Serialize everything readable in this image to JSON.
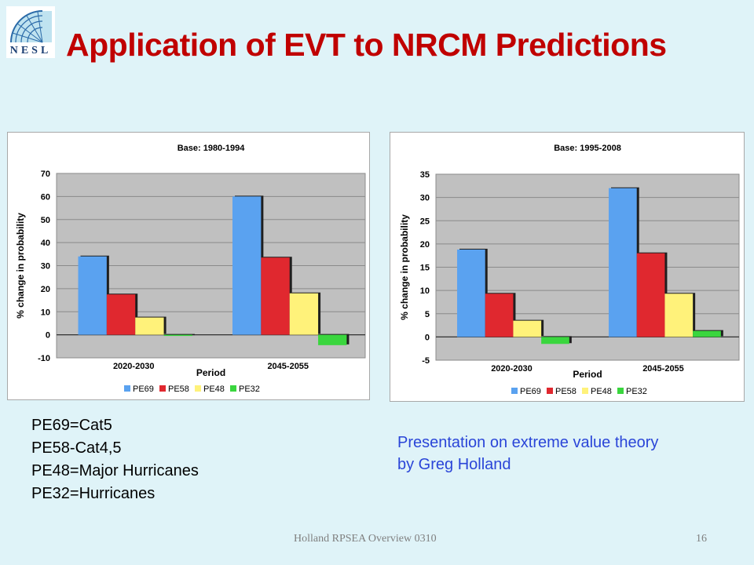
{
  "slide": {
    "title": "Application of EVT to NRCM Predictions",
    "logo_text": "NESL",
    "definitions": [
      "PE69=Cat5",
      "PE58-Cat4,5",
      "PE48=Major Hurricanes",
      "PE32=Hurricanes"
    ],
    "note_lines": [
      "Presentation on extreme value theory",
      "by Greg Holland"
    ],
    "footer": "Holland RPSEA Overview 0310",
    "page_number": "16"
  },
  "colors": {
    "PE69": "#5aa2f0",
    "PE58": "#e0282f",
    "PE48": "#fff27a",
    "PE32": "#3ad63e",
    "title": "#c00000",
    "plot_bg": "#c0c0c0"
  },
  "chart_data": [
    {
      "type": "bar",
      "title": "Base: 1980-1994",
      "xlabel": "Period",
      "ylabel": "% change in probability",
      "ylim": [
        -10,
        70
      ],
      "yticks": [
        -10,
        0,
        10,
        20,
        30,
        40,
        50,
        60,
        70
      ],
      "categories": [
        "2020-2030",
        "2045-2055"
      ],
      "series": [
        {
          "name": "PE69",
          "values": [
            34,
            60
          ]
        },
        {
          "name": "PE58",
          "values": [
            17.5,
            33.5
          ]
        },
        {
          "name": "PE48",
          "values": [
            7.5,
            18
          ]
        },
        {
          "name": "PE32",
          "values": [
            -0.5,
            -4.5
          ]
        }
      ],
      "grid": true,
      "legend": "bottom"
    },
    {
      "type": "bar",
      "title": "Base: 1995-2008",
      "xlabel": "Period",
      "ylabel": "% change in probability",
      "ylim": [
        -5,
        35
      ],
      "yticks": [
        -5,
        0,
        5,
        10,
        15,
        20,
        25,
        30,
        35
      ],
      "categories": [
        "2020-2030",
        "2045-2055"
      ],
      "series": [
        {
          "name": "PE69",
          "values": [
            18.8,
            32
          ]
        },
        {
          "name": "PE58",
          "values": [
            9.3,
            18
          ]
        },
        {
          "name": "PE48",
          "values": [
            3.5,
            9.3
          ]
        },
        {
          "name": "PE32",
          "values": [
            -1.5,
            1.3
          ]
        }
      ],
      "grid": true,
      "legend": "bottom"
    }
  ]
}
